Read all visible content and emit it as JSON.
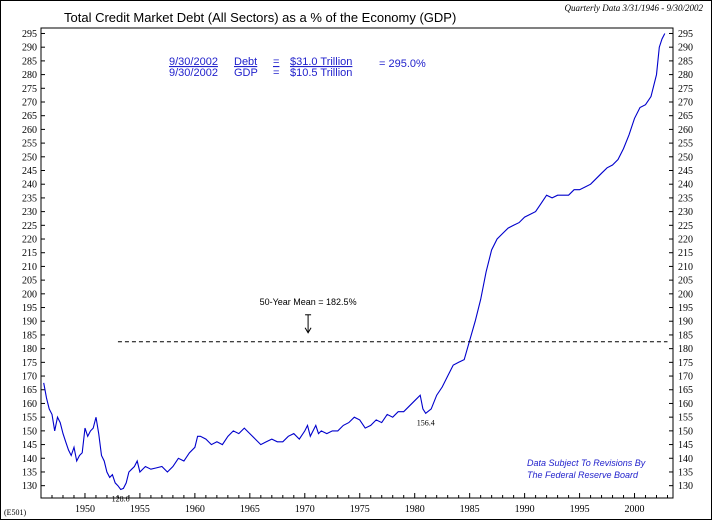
{
  "chart_data": {
    "type": "line",
    "title": "Total Credit Market Debt (All Sectors) as a % of the Economy (GDP)",
    "subtitle": "Quarterly Data 3/31/1946 - 9/30/2002",
    "chart_id": "(E501)",
    "xlabel": "",
    "ylabel": "",
    "xlim": [
      1946,
      2003.5
    ],
    "ylim": [
      125.5,
      297
    ],
    "x_ticks": [
      1950,
      1955,
      1960,
      1965,
      1970,
      1975,
      1980,
      1985,
      1990,
      1995,
      2000
    ],
    "y_ticks": [
      130,
      135,
      140,
      145,
      150,
      155,
      160,
      165,
      170,
      175,
      180,
      185,
      190,
      195,
      200,
      205,
      210,
      215,
      220,
      225,
      230,
      235,
      240,
      245,
      250,
      255,
      260,
      265,
      270,
      275,
      280,
      285,
      290,
      295
    ],
    "y_axis_sides": "left and right",
    "grid": false,
    "line_color": "#0000cc",
    "text_color": "#1a1acc",
    "series": [
      {
        "name": "",
        "points": [
          [
            1946.25,
            167.5
          ],
          [
            1946.5,
            162
          ],
          [
            1946.75,
            158
          ],
          [
            1947.0,
            156
          ],
          [
            1947.25,
            150
          ],
          [
            1947.5,
            155
          ],
          [
            1947.75,
            153
          ],
          [
            1948.0,
            149
          ],
          [
            1948.25,
            146
          ],
          [
            1948.5,
            143
          ],
          [
            1948.75,
            141
          ],
          [
            1949.0,
            144
          ],
          [
            1949.25,
            139
          ],
          [
            1949.5,
            141
          ],
          [
            1949.75,
            142
          ],
          [
            1950.0,
            151
          ],
          [
            1950.25,
            148
          ],
          [
            1950.5,
            150
          ],
          [
            1950.75,
            151
          ],
          [
            1951.0,
            155
          ],
          [
            1951.25,
            149
          ],
          [
            1951.5,
            141
          ],
          [
            1951.75,
            139
          ],
          [
            1952.0,
            135
          ],
          [
            1952.25,
            133
          ],
          [
            1952.5,
            134
          ],
          [
            1952.75,
            131
          ],
          [
            1953.0,
            130
          ],
          [
            1953.25,
            128.6
          ],
          [
            1953.5,
            129
          ],
          [
            1953.75,
            131
          ],
          [
            1954.0,
            135
          ],
          [
            1954.25,
            136
          ],
          [
            1954.5,
            137
          ],
          [
            1954.75,
            139
          ],
          [
            1955.0,
            135
          ],
          [
            1955.5,
            137
          ],
          [
            1956.0,
            136
          ],
          [
            1956.5,
            136.5
          ],
          [
            1957.0,
            137
          ],
          [
            1957.5,
            135
          ],
          [
            1958.0,
            137
          ],
          [
            1958.5,
            140
          ],
          [
            1959.0,
            139
          ],
          [
            1959.5,
            142
          ],
          [
            1960.0,
            144
          ],
          [
            1960.25,
            148
          ],
          [
            1960.5,
            148
          ],
          [
            1961.0,
            147
          ],
          [
            1961.5,
            145
          ],
          [
            1962.0,
            146
          ],
          [
            1962.5,
            145
          ],
          [
            1963.0,
            148
          ],
          [
            1963.5,
            150
          ],
          [
            1964.0,
            149
          ],
          [
            1964.5,
            151
          ],
          [
            1965.0,
            149
          ],
          [
            1965.5,
            147
          ],
          [
            1966.0,
            145
          ],
          [
            1966.5,
            146
          ],
          [
            1967.0,
            147
          ],
          [
            1967.5,
            146
          ],
          [
            1968.0,
            146
          ],
          [
            1968.5,
            148
          ],
          [
            1969.0,
            149
          ],
          [
            1969.5,
            147
          ],
          [
            1970.0,
            150
          ],
          [
            1970.25,
            152
          ],
          [
            1970.5,
            148
          ],
          [
            1971.0,
            152
          ],
          [
            1971.25,
            149
          ],
          [
            1971.5,
            150
          ],
          [
            1972.0,
            149
          ],
          [
            1972.5,
            150
          ],
          [
            1973.0,
            150
          ],
          [
            1973.5,
            152
          ],
          [
            1974.0,
            153
          ],
          [
            1974.5,
            155
          ],
          [
            1975.0,
            154
          ],
          [
            1975.5,
            151
          ],
          [
            1976.0,
            152
          ],
          [
            1976.5,
            154
          ],
          [
            1977.0,
            153
          ],
          [
            1977.5,
            156
          ],
          [
            1978.0,
            155
          ],
          [
            1978.5,
            157
          ],
          [
            1979.0,
            157
          ],
          [
            1979.5,
            159
          ],
          [
            1980.0,
            161
          ],
          [
            1980.5,
            163
          ],
          [
            1980.75,
            158
          ],
          [
            1981.0,
            156.4
          ],
          [
            1981.5,
            158
          ],
          [
            1982.0,
            163
          ],
          [
            1982.5,
            166
          ],
          [
            1983.0,
            170
          ],
          [
            1983.5,
            174
          ],
          [
            1984.0,
            175
          ],
          [
            1984.5,
            176
          ],
          [
            1985.0,
            183
          ],
          [
            1985.5,
            190
          ],
          [
            1986.0,
            198
          ],
          [
            1986.5,
            208
          ],
          [
            1987.0,
            216
          ],
          [
            1987.5,
            220
          ],
          [
            1988.0,
            222
          ],
          [
            1988.5,
            224
          ],
          [
            1989.0,
            225
          ],
          [
            1989.5,
            226
          ],
          [
            1990.0,
            228
          ],
          [
            1990.5,
            229
          ],
          [
            1991.0,
            230
          ],
          [
            1991.5,
            233
          ],
          [
            1992.0,
            236
          ],
          [
            1992.5,
            235
          ],
          [
            1993.0,
            236
          ],
          [
            1993.5,
            236
          ],
          [
            1994.0,
            236
          ],
          [
            1994.5,
            238
          ],
          [
            1995.0,
            238
          ],
          [
            1995.5,
            239
          ],
          [
            1996.0,
            240
          ],
          [
            1996.5,
            242
          ],
          [
            1997.0,
            244
          ],
          [
            1997.5,
            246
          ],
          [
            1998.0,
            247
          ],
          [
            1998.5,
            249
          ],
          [
            1999.0,
            253
          ],
          [
            1999.5,
            258
          ],
          [
            2000.0,
            264
          ],
          [
            2000.5,
            268
          ],
          [
            2001.0,
            269
          ],
          [
            2001.5,
            272
          ],
          [
            2002.0,
            280
          ],
          [
            2002.25,
            290
          ],
          [
            2002.5,
            293
          ],
          [
            2002.75,
            295
          ]
        ]
      }
    ],
    "mean": {
      "value": 182.5,
      "x_range": [
        1953,
        2003
      ],
      "label": "50-Year Mean = 182.5%"
    },
    "point_labels": [
      {
        "x": 1953.25,
        "y": 128.6,
        "text": "128.6"
      },
      {
        "x": 1981.0,
        "y": 156.4,
        "text": "156.4"
      }
    ],
    "info_box": {
      "row1": {
        "date": "9/30/2002",
        "name": "Debt",
        "eq": "=",
        "value": "$31.0 Trillion"
      },
      "row2": {
        "date": "9/30/2002",
        "name": "GDP",
        "eq": "=",
        "value": "$10.5 Trillion"
      },
      "ratio": "= 295.0%"
    },
    "note": [
      "Data Subject To Revisions By",
      "The Federal Reserve Board"
    ]
  }
}
